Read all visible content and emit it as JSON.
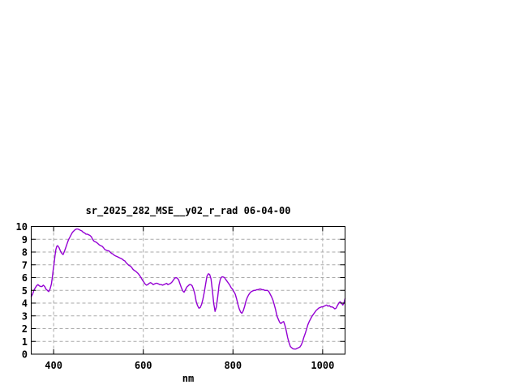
{
  "window": {
    "background_color": "#ffffff"
  },
  "chart_data": {
    "type": "line",
    "title": "sr_2025_282_MSE__y02_r_rad 06-04-00",
    "xlabel": "nm",
    "ylabel": "",
    "xlim": [
      350,
      1050
    ],
    "ylim": [
      0,
      10
    ],
    "xticks": [
      400,
      600,
      800,
      1000
    ],
    "yticks": [
      0,
      1,
      2,
      3,
      4,
      5,
      6,
      7,
      8,
      9,
      10
    ],
    "grid": true,
    "grid_style": "dashed",
    "legend": false,
    "line_color": "#9400d3",
    "grid_color": "#aaaaaa",
    "border_color": "#000000",
    "series_name": "sr_2025_282_MSE__y02_r_rad",
    "x": [
      350,
      353,
      356,
      359,
      362,
      365,
      368,
      371,
      374,
      377,
      380,
      383,
      386,
      389,
      392,
      395,
      397,
      399,
      401,
      403,
      405,
      407,
      409,
      412,
      415,
      418,
      421,
      424,
      427,
      430,
      433,
      436,
      439,
      442,
      445,
      448,
      451,
      454,
      457,
      460,
      463,
      466,
      469,
      472,
      475,
      478,
      481,
      484,
      487,
      490,
      493,
      496,
      499,
      502,
      505,
      508,
      511,
      514,
      517,
      520,
      523,
      526,
      529,
      532,
      535,
      538,
      541,
      544,
      547,
      550,
      553,
      556,
      559,
      562,
      565,
      568,
      571,
      574,
      577,
      580,
      583,
      586,
      589,
      592,
      595,
      598,
      601,
      604,
      607,
      610,
      613,
      616,
      619,
      622,
      625,
      628,
      631,
      634,
      637,
      640,
      643,
      646,
      649,
      652,
      655,
      658,
      661,
      664,
      667,
      670,
      673,
      676,
      679,
      682,
      685,
      688,
      691,
      694,
      697,
      700,
      703,
      706,
      709,
      712,
      715,
      718,
      721,
      724,
      727,
      730,
      733,
      736,
      739,
      742,
      745,
      748,
      751,
      754,
      757,
      760,
      763,
      766,
      769,
      772,
      775,
      778,
      781,
      784,
      787,
      790,
      793,
      796,
      799,
      802,
      805,
      808,
      811,
      814,
      817,
      820,
      823,
      826,
      829,
      832,
      835,
      838,
      841,
      844,
      847,
      850,
      853,
      856,
      859,
      862,
      865,
      868,
      871,
      874,
      877,
      880,
      883,
      886,
      889,
      892,
      895,
      898,
      901,
      904,
      907,
      910,
      913,
      916,
      919,
      922,
      925,
      928,
      931,
      934,
      937,
      940,
      943,
      946,
      949,
      952,
      955,
      958,
      961,
      964,
      967,
      970,
      973,
      976,
      979,
      982,
      985,
      988,
      991,
      994,
      997,
      1000,
      1003,
      1006,
      1009,
      1012,
      1015,
      1018,
      1021,
      1024,
      1027,
      1030,
      1033,
      1036,
      1039,
      1042,
      1045,
      1047,
      1050
    ],
    "y": [
      4.5,
      4.7,
      5.0,
      5.2,
      5.35,
      5.45,
      5.35,
      5.3,
      5.3,
      5.4,
      5.3,
      5.1,
      5.0,
      4.9,
      5.1,
      5.5,
      6.0,
      6.6,
      7.1,
      7.7,
      8.2,
      8.45,
      8.5,
      8.35,
      8.1,
      7.9,
      7.8,
      8.05,
      8.35,
      8.65,
      8.95,
      9.15,
      9.35,
      9.55,
      9.65,
      9.75,
      9.8,
      9.8,
      9.75,
      9.7,
      9.65,
      9.55,
      9.5,
      9.4,
      9.4,
      9.35,
      9.3,
      9.2,
      9.0,
      8.85,
      8.8,
      8.75,
      8.65,
      8.55,
      8.5,
      8.45,
      8.35,
      8.2,
      8.15,
      8.1,
      8.1,
      8.0,
      7.9,
      7.85,
      7.75,
      7.7,
      7.65,
      7.6,
      7.55,
      7.5,
      7.45,
      7.35,
      7.3,
      7.15,
      7.05,
      6.95,
      6.9,
      6.8,
      6.65,
      6.55,
      6.5,
      6.4,
      6.3,
      6.15,
      6.0,
      5.8,
      5.65,
      5.5,
      5.4,
      5.45,
      5.55,
      5.6,
      5.55,
      5.45,
      5.5,
      5.55,
      5.55,
      5.5,
      5.45,
      5.45,
      5.4,
      5.45,
      5.5,
      5.55,
      5.45,
      5.5,
      5.55,
      5.65,
      5.8,
      5.95,
      6.0,
      5.95,
      5.8,
      5.5,
      5.2,
      4.95,
      4.85,
      5.05,
      5.25,
      5.35,
      5.45,
      5.45,
      5.35,
      5.1,
      4.7,
      4.1,
      3.8,
      3.6,
      3.65,
      3.9,
      4.3,
      4.85,
      5.5,
      6.1,
      6.3,
      6.25,
      5.9,
      5.0,
      4.0,
      3.35,
      3.7,
      4.5,
      5.4,
      5.9,
      6.05,
      6.05,
      6.0,
      5.85,
      5.7,
      5.55,
      5.4,
      5.2,
      5.1,
      4.9,
      4.7,
      4.35,
      3.9,
      3.55,
      3.3,
      3.2,
      3.4,
      3.75,
      4.15,
      4.45,
      4.65,
      4.8,
      4.9,
      4.95,
      5.0,
      5.0,
      5.05,
      5.05,
      5.1,
      5.1,
      5.05,
      5.05,
      5.0,
      5.0,
      5.0,
      4.9,
      4.7,
      4.5,
      4.25,
      3.9,
      3.5,
      3.0,
      2.75,
      2.5,
      2.4,
      2.5,
      2.55,
      2.25,
      1.8,
      1.3,
      0.9,
      0.6,
      0.5,
      0.42,
      0.4,
      0.4,
      0.45,
      0.5,
      0.55,
      0.7,
      0.95,
      1.3,
      1.6,
      1.95,
      2.3,
      2.55,
      2.75,
      2.95,
      3.1,
      3.25,
      3.4,
      3.5,
      3.6,
      3.65,
      3.7,
      3.7,
      3.75,
      3.8,
      3.85,
      3.75,
      3.8,
      3.7,
      3.7,
      3.65,
      3.55,
      3.6,
      3.8,
      4.0,
      4.1,
      4.0,
      3.85,
      3.95,
      4.35
    ]
  }
}
